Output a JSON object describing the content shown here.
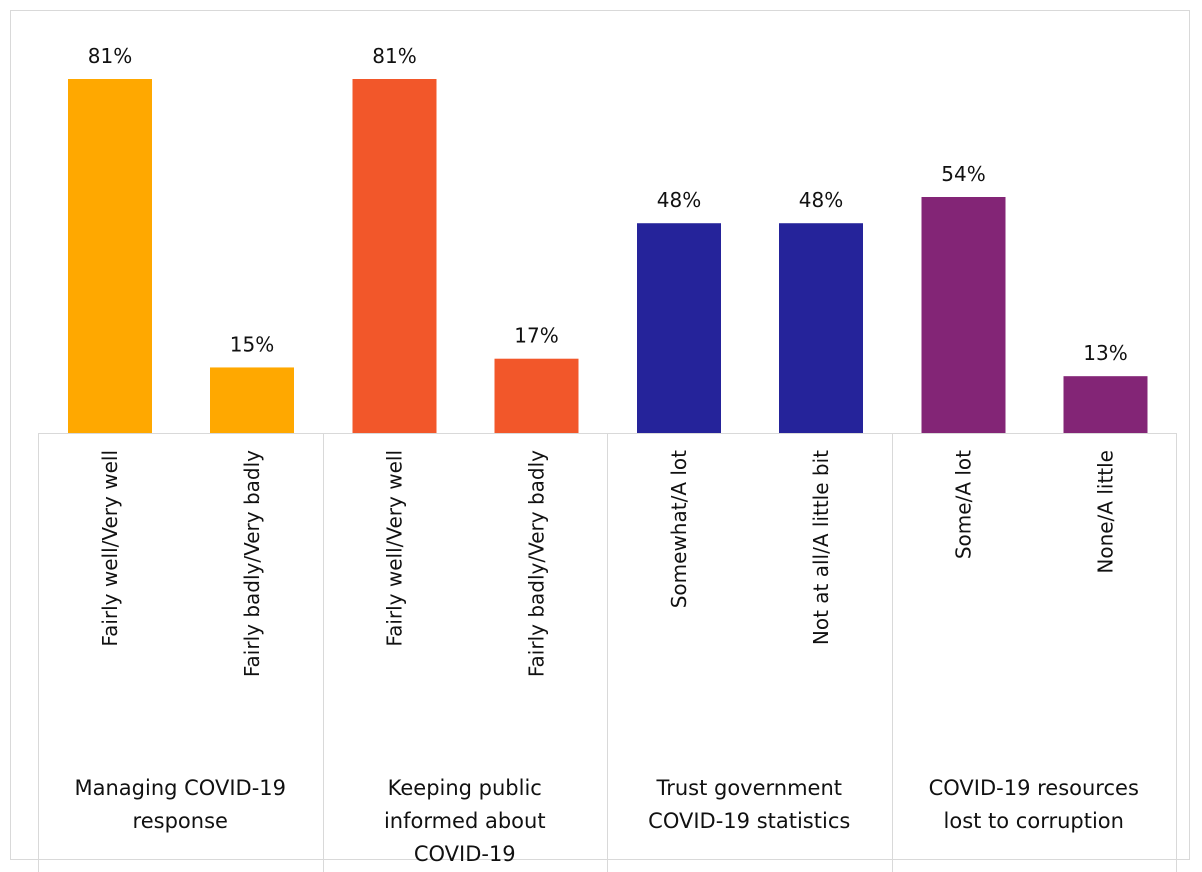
{
  "chart_data": {
    "type": "bar",
    "ylim": [
      0,
      100
    ],
    "grid": false,
    "legend": "none",
    "groups": [
      {
        "label_lines": [
          "Managing COVID-19",
          "response"
        ],
        "color": "#FFA800",
        "bars": [
          {
            "category": "Fairly well/Very well",
            "value": 81,
            "label": "81%"
          },
          {
            "category": "Fairly badly/Very badly",
            "value": 15,
            "label": "15%"
          }
        ]
      },
      {
        "label_lines": [
          "Keeping public",
          "informed about",
          "COVID-19"
        ],
        "color": "#F2572A",
        "bars": [
          {
            "category": "Fairly well/Very well",
            "value": 81,
            "label": "81%"
          },
          {
            "category": "Fairly badly/Very badly",
            "value": 17,
            "label": "17%"
          }
        ]
      },
      {
        "label_lines": [
          "Trust government",
          "COVID-19 statistics"
        ],
        "color": "#25239A",
        "bars": [
          {
            "category": "Somewhat/A lot",
            "value": 48,
            "label": "48%"
          },
          {
            "category": "Not at all/A little bit",
            "value": 48,
            "label": "48%"
          }
        ]
      },
      {
        "label_lines": [
          "COVID-19 resources",
          "lost to corruption"
        ],
        "color": "#832576",
        "bars": [
          {
            "category": "Some/A lot",
            "value": 54,
            "label": "54%"
          },
          {
            "category": "None/A little",
            "value": 13,
            "label": "13%"
          }
        ]
      }
    ]
  }
}
